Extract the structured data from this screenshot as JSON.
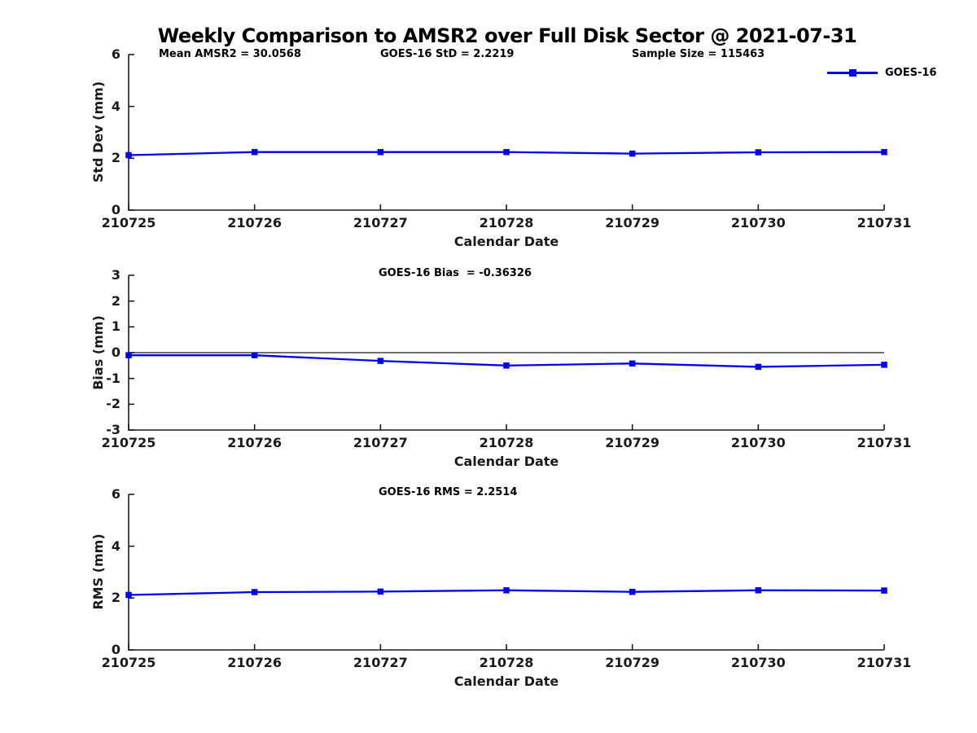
{
  "figure": {
    "title": "Weekly Comparison to AMSR2 over Full Disk Sector @ 2021-07-31",
    "legend": {
      "label": "GOES-16",
      "color": "#0000EE"
    },
    "axis_color": "#1a1a1a"
  },
  "chart_data": [
    {
      "type": "line",
      "ylabel": "Std Dev (mm)",
      "xlabel": "Calendar Date",
      "categories": [
        "210725",
        "210726",
        "210727",
        "210728",
        "210729",
        "210730",
        "210731"
      ],
      "series": [
        {
          "name": "GOES-16",
          "color": "#0000EE",
          "marker": "square",
          "values": [
            2.12,
            2.24,
            2.24,
            2.24,
            2.18,
            2.23,
            2.24
          ]
        }
      ],
      "ylim": [
        0,
        6
      ],
      "yticks": [
        0,
        2,
        4,
        6
      ],
      "grid": false,
      "zero_line": false,
      "annotations": [
        "Mean AMSR2 = 30.0568",
        "GOES-16 StD = 2.2219",
        "Sample Size = 115463"
      ],
      "legend_position": "northeast-outside"
    },
    {
      "type": "line",
      "ylabel": "Bias (mm)",
      "xlabel": "Calendar Date",
      "categories": [
        "210725",
        "210726",
        "210727",
        "210728",
        "210729",
        "210730",
        "210731"
      ],
      "series": [
        {
          "name": "GOES-16",
          "color": "#0000EE",
          "marker": "square",
          "values": [
            -0.1,
            -0.1,
            -0.32,
            -0.5,
            -0.42,
            -0.55,
            -0.47
          ]
        }
      ],
      "ylim": [
        -3,
        3
      ],
      "yticks": [
        -3,
        -2,
        -1,
        0,
        1,
        2,
        3
      ],
      "grid": false,
      "zero_line": true,
      "annotations": [
        "GOES-16 Bias  = -0.36326"
      ],
      "legend_position": "none"
    },
    {
      "type": "line",
      "ylabel": "RMS (mm)",
      "xlabel": "Calendar Date",
      "categories": [
        "210725",
        "210726",
        "210727",
        "210728",
        "210729",
        "210730",
        "210731"
      ],
      "series": [
        {
          "name": "GOES-16",
          "color": "#0000EE",
          "marker": "square",
          "values": [
            2.12,
            2.23,
            2.25,
            2.3,
            2.24,
            2.3,
            2.29
          ]
        }
      ],
      "ylim": [
        0,
        6
      ],
      "yticks": [
        0,
        2,
        4,
        6
      ],
      "grid": false,
      "zero_line": false,
      "annotations": [
        "GOES-16 RMS = 2.2514"
      ],
      "legend_position": "none"
    }
  ]
}
